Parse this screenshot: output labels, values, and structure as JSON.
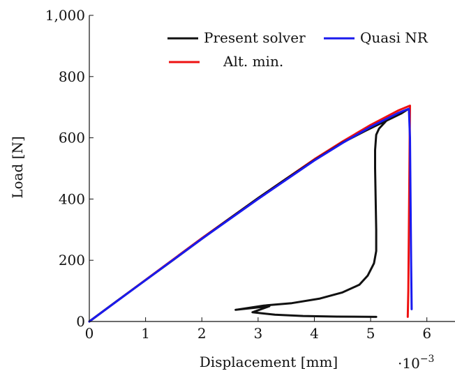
{
  "chart_data": {
    "type": "line",
    "title": "",
    "xlabel": "Displacement [mm]",
    "ylabel": "Load [N]",
    "x_scale_label": {
      "base": "·10",
      "exponent": "−3"
    },
    "xlim": [
      0,
      6.5
    ],
    "ylim": [
      0,
      1000
    ],
    "x_ticks": [
      0,
      1,
      2,
      3,
      4,
      5,
      6
    ],
    "x_tick_labels": [
      "0",
      "1",
      "2",
      "3",
      "4",
      "5",
      "6"
    ],
    "y_ticks": [
      0,
      200,
      400,
      600,
      800,
      1000
    ],
    "y_tick_labels": [
      "0",
      "200",
      "400",
      "600",
      "800",
      "1,000"
    ],
    "grid": false,
    "legend_position": "top-right",
    "series": [
      {
        "name": "Present solver",
        "color": "#111111",
        "points": [
          [
            0,
            0
          ],
          [
            0.5,
            68
          ],
          [
            1,
            135
          ],
          [
            1.5,
            202
          ],
          [
            2,
            270
          ],
          [
            2.5,
            337
          ],
          [
            3,
            403
          ],
          [
            3.5,
            466
          ],
          [
            4,
            527
          ],
          [
            4.5,
            584
          ],
          [
            4.9,
            622
          ],
          [
            5.1,
            640
          ],
          [
            5.35,
            662
          ],
          [
            5.55,
            680
          ],
          [
            5.65,
            692
          ],
          [
            5.3,
            660
          ],
          [
            5.15,
            630
          ],
          [
            5.1,
            610
          ],
          [
            5.08,
            560
          ],
          [
            5.08,
            500
          ],
          [
            5.09,
            400
          ],
          [
            5.1,
            300
          ],
          [
            5.1,
            230
          ],
          [
            5.06,
            190
          ],
          [
            4.95,
            150
          ],
          [
            4.8,
            120
          ],
          [
            4.5,
            95
          ],
          [
            4.1,
            75
          ],
          [
            3.6,
            60
          ],
          [
            3.1,
            52
          ],
          [
            2.6,
            38
          ],
          [
            3.2,
            50
          ],
          [
            2.9,
            30
          ],
          [
            3.3,
            22
          ],
          [
            3.8,
            18
          ],
          [
            4.4,
            16
          ],
          [
            5.1,
            15
          ]
        ]
      },
      {
        "name": "Quasi NR",
        "color": "#1a1aee",
        "points": [
          [
            0,
            0
          ],
          [
            1,
            135
          ],
          [
            2,
            270
          ],
          [
            3,
            400
          ],
          [
            4,
            526
          ],
          [
            4.5,
            583
          ],
          [
            5,
            636
          ],
          [
            5.5,
            682
          ],
          [
            5.68,
            695
          ],
          [
            5.7,
            600
          ],
          [
            5.71,
            400
          ],
          [
            5.72,
            200
          ],
          [
            5.73,
            40
          ]
        ]
      },
      {
        "name": "Alt. min.",
        "color": "#ee1111",
        "points": [
          [
            0,
            0
          ],
          [
            1,
            136
          ],
          [
            2,
            272
          ],
          [
            3,
            403
          ],
          [
            4,
            530
          ],
          [
            4.5,
            588
          ],
          [
            5,
            642
          ],
          [
            5.5,
            690
          ],
          [
            5.7,
            705
          ],
          [
            5.69,
            500
          ],
          [
            5.68,
            300
          ],
          [
            5.67,
            100
          ],
          [
            5.66,
            15
          ]
        ]
      }
    ]
  }
}
